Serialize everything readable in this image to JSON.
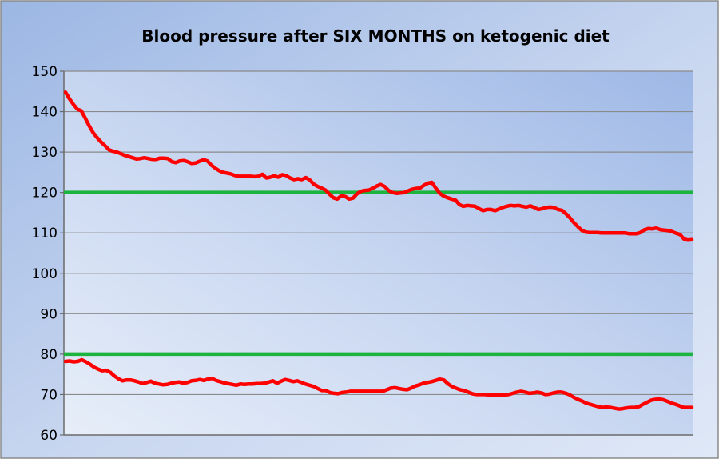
{
  "chart_data": {
    "type": "line",
    "title": "Blood pressure after SIX MONTHS on ketogenic diet",
    "xlabel": "",
    "ylabel": "",
    "ylim": [
      60,
      150
    ],
    "yticks": [
      "60",
      "70",
      "80",
      "90",
      "100",
      "110",
      "120",
      "130",
      "140",
      "150"
    ],
    "grid": true,
    "legend": "none",
    "reference_lines": [
      {
        "y": 120,
        "color": "#1db33f"
      },
      {
        "y": 80,
        "color": "#1db33f"
      }
    ],
    "series": [
      {
        "color": "#ff0000",
        "values": [
          144.8,
          143.2,
          141.8,
          140.6,
          140.2,
          138.4,
          136.5,
          134.8,
          133.6,
          132.5,
          131.6,
          130.6,
          130.2,
          130.0,
          129.6,
          129.2,
          128.9,
          128.6,
          128.3,
          128.4,
          128.6,
          128.4,
          128.2,
          128.2,
          128.5,
          128.5,
          128.4,
          127.6,
          127.4,
          127.8,
          127.9,
          127.6,
          127.2,
          127.3,
          127.7,
          128.1,
          127.8,
          126.8,
          126.0,
          125.4,
          125.0,
          124.8,
          124.6,
          124.2,
          124.0,
          124.0,
          124.0,
          124.0,
          123.9,
          124.0,
          124.5,
          123.6,
          123.8,
          124.1,
          123.8,
          124.4,
          124.2,
          123.6,
          123.2,
          123.4,
          123.2,
          123.7,
          123.1,
          122.1,
          121.5,
          121.1,
          120.6,
          119.6,
          118.7,
          118.4,
          119.2,
          119.0,
          118.4,
          118.6,
          119.7,
          120.3,
          120.5,
          120.6,
          121.0,
          121.6,
          122.0,
          121.5,
          120.5,
          120.0,
          119.8,
          119.9,
          120.0,
          120.4,
          120.8,
          121.0,
          121.1,
          121.8,
          122.3,
          122.5,
          121.1,
          119.8,
          119.1,
          118.7,
          118.4,
          118.1,
          117.0,
          116.6,
          116.8,
          116.7,
          116.6,
          116.0,
          115.5,
          115.8,
          115.8,
          115.5,
          115.9,
          116.3,
          116.6,
          116.8,
          116.7,
          116.8,
          116.6,
          116.4,
          116.7,
          116.3,
          115.8,
          116.0,
          116.3,
          116.4,
          116.3,
          115.8,
          115.6,
          114.8,
          113.8,
          112.6,
          111.6,
          110.7,
          110.2,
          110.1,
          110.1,
          110.1,
          110.0,
          110.0,
          110.0,
          110.0,
          110.0,
          110.0,
          110.0,
          109.8,
          109.8,
          109.8,
          110.1,
          110.8,
          111.1,
          111.0,
          111.2,
          110.8,
          110.7,
          110.6,
          110.3,
          109.9,
          109.6,
          108.5,
          108.2,
          108.3
        ]
      },
      {
        "color": "#ff0000",
        "values": [
          78.2,
          78.3,
          78.1,
          78.2,
          78.6,
          78.1,
          77.5,
          76.8,
          76.3,
          75.9,
          76.0,
          75.5,
          74.6,
          73.9,
          73.4,
          73.6,
          73.6,
          73.4,
          73.1,
          72.7,
          73.0,
          73.3,
          72.8,
          72.6,
          72.4,
          72.5,
          72.8,
          73.0,
          73.1,
          72.8,
          73.0,
          73.4,
          73.5,
          73.7,
          73.5,
          73.8,
          74.0,
          73.5,
          73.2,
          72.9,
          72.7,
          72.5,
          72.3,
          72.6,
          72.5,
          72.6,
          72.6,
          72.7,
          72.7,
          72.8,
          73.1,
          73.4,
          72.8,
          73.3,
          73.7,
          73.5,
          73.2,
          73.4,
          73.0,
          72.6,
          72.3,
          72.0,
          71.5,
          71.0,
          71.0,
          70.5,
          70.3,
          70.2,
          70.5,
          70.6,
          70.8,
          70.8,
          70.8,
          70.8,
          70.8,
          70.8,
          70.8,
          70.8,
          70.8,
          71.2,
          71.6,
          71.7,
          71.5,
          71.3,
          71.2,
          71.6,
          72.1,
          72.4,
          72.8,
          73.0,
          73.2,
          73.5,
          73.8,
          73.6,
          72.7,
          72.0,
          71.6,
          71.2,
          71.0,
          70.6,
          70.2,
          70.0,
          70.0,
          70.0,
          69.9,
          69.9,
          69.9,
          69.9,
          69.9,
          70.0,
          70.3,
          70.6,
          70.8,
          70.6,
          70.3,
          70.4,
          70.6,
          70.4,
          70.0,
          70.1,
          70.4,
          70.6,
          70.6,
          70.3,
          69.9,
          69.3,
          68.8,
          68.4,
          67.9,
          67.6,
          67.3,
          67.0,
          66.8,
          66.9,
          66.8,
          66.6,
          66.4,
          66.5,
          66.7,
          66.8,
          66.8,
          67.0,
          67.6,
          68.1,
          68.6,
          68.8,
          68.9,
          68.7,
          68.3,
          67.9,
          67.6,
          67.2,
          66.8,
          66.8,
          66.8
        ]
      }
    ]
  }
}
